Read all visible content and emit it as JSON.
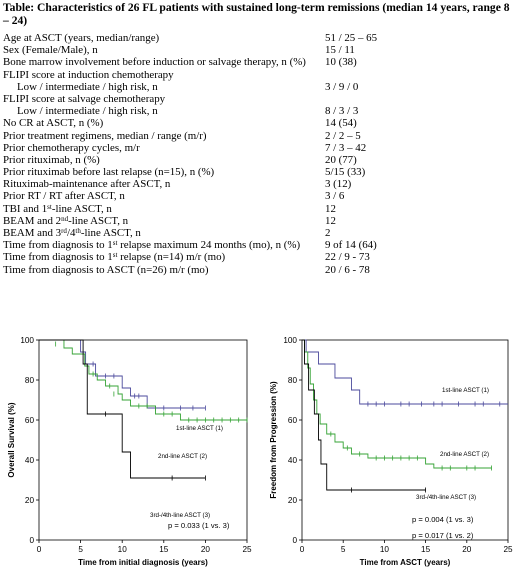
{
  "table": {
    "title": "Table:  Characteristics of 26 FL patients with sustained long-term remissions (median 14 years, range 8 – 24)",
    "rows": [
      {
        "label": "Age at ASCT (years, median/range)",
        "value": "51 / 25 – 65"
      },
      {
        "label": "Sex (Female/Male), n",
        "value": "15 / 11"
      },
      {
        "label": "Bone marrow involvement before induction or salvage therapy, n (%)",
        "value": "10 (38)"
      },
      {
        "label": "FLIPI score at induction chemotherapy",
        "value": ""
      },
      {
        "label": "Low / intermediate / high risk, n",
        "value": "3 / 9 / 0",
        "indent": true
      },
      {
        "label": "FLIPI score at salvage chemotherapy",
        "value": ""
      },
      {
        "label": "Low / intermediate / high risk, n",
        "value": "8 / 3 / 3",
        "indent": true
      },
      {
        "label": "No CR at ASCT, n (%)",
        "value": "14 (54)"
      },
      {
        "label": "Prior treatment regimens, median / range (m/r)",
        "value": "2 / 2 – 5"
      },
      {
        "label": "Prior chemotherapy cycles, m/r",
        "value": "7 / 3 – 42"
      },
      {
        "label": "Prior rituximab, n (%)",
        "value": "20 (77)"
      },
      {
        "label": "Prior rituximab before last relapse (n=15), n (%)",
        "value": "5/15 (33)"
      },
      {
        "label": "Rituximab-maintenance after ASCT, n",
        "value": "3 (12)"
      },
      {
        "label": "Prior RT / RT after ASCT, n",
        "value": "3 / 6"
      },
      {
        "label_parts": [
          "TBI and 1",
          "st",
          "-line ASCT, n"
        ],
        "value": "12"
      },
      {
        "label_parts": [
          "BEAM and 2",
          "nd",
          "-line ASCT, n"
        ],
        "value": "12"
      },
      {
        "label_parts": [
          "BEAM and 3",
          "rd",
          "/4",
          "th",
          "-line ASCT, n"
        ],
        "value": "2"
      },
      {
        "label_parts": [
          "Time from diagnosis to 1",
          "st",
          " relapse maximum 24 months (mo), n (%)"
        ],
        "value": "9 of 14 (64)"
      },
      {
        "label_parts": [
          "Time from diagnosis to 1",
          "st",
          " relapse (n=14) m/r (mo)"
        ],
        "value": "22 / 9 - 73"
      },
      {
        "label": "Time from diagnosis to ASCT (n=26) m/r (mo)",
        "value": "20 / 6 - 78"
      }
    ]
  },
  "chart_data": [
    {
      "type": "line",
      "xlabel": "Time from initial diagnosis (years)",
      "ylabel": "Overall Survival (%)",
      "xlim": [
        0,
        25
      ],
      "ylim": [
        0,
        100
      ],
      "x_ticks": [
        0,
        5,
        10,
        15,
        20,
        25
      ],
      "y_ticks": [
        0,
        20,
        40,
        60,
        80,
        100
      ],
      "annotations": [
        "p = 0.033 (1 vs. 3)"
      ],
      "series": [
        {
          "name": "1st-line ASCT (1)",
          "color": "#4b4a9c",
          "steps": [
            [
              0,
              100
            ],
            [
              5,
              94
            ],
            [
              5.6,
              88
            ],
            [
              6.8,
              82
            ],
            [
              10,
              76
            ],
            [
              11,
              72
            ],
            [
              13,
              66
            ],
            [
              20,
              66
            ]
          ],
          "censors": [
            [
              6.5,
              88
            ],
            [
              8,
              82
            ],
            [
              9,
              82
            ],
            [
              11.5,
              72
            ],
            [
              12,
              72
            ],
            [
              14,
              66
            ],
            [
              15,
              66
            ],
            [
              17,
              66
            ],
            [
              18.5,
              66
            ],
            [
              20,
              66
            ]
          ]
        },
        {
          "name": "2nd-line ASCT (2)",
          "color": "#35a335",
          "steps": [
            [
              0,
              100
            ],
            [
              3,
              96
            ],
            [
              4,
              93
            ],
            [
              5.5,
              87
            ],
            [
              6,
              83
            ],
            [
              7,
              80
            ],
            [
              8,
              77
            ],
            [
              9.5,
              73
            ],
            [
              10,
              70
            ],
            [
              11,
              67
            ],
            [
              14,
              63
            ],
            [
              17,
              60
            ],
            [
              25,
              60
            ]
          ],
          "censors": [
            [
              2,
              98
            ],
            [
              6.5,
              83
            ],
            [
              8.5,
              77
            ],
            [
              9,
              73
            ],
            [
              12,
              67
            ],
            [
              13,
              67
            ],
            [
              15,
              63
            ],
            [
              16,
              63
            ],
            [
              18,
              60
            ],
            [
              19,
              60
            ],
            [
              20,
              60
            ],
            [
              21,
              60
            ],
            [
              22,
              60
            ],
            [
              23,
              60
            ],
            [
              24,
              60
            ],
            [
              25,
              60
            ]
          ]
        },
        {
          "name": "3rd-/4th-line ASCT (3)",
          "color": "#000000",
          "steps": [
            [
              0,
              100
            ],
            [
              5.3,
              88
            ],
            [
              5.8,
              63
            ],
            [
              10,
              44
            ],
            [
              11,
              31
            ],
            [
              20,
              31
            ]
          ],
          "censors": [
            [
              8,
              63
            ],
            [
              16,
              31
            ],
            [
              20,
              31
            ]
          ]
        }
      ]
    },
    {
      "type": "line",
      "xlabel": "Time from ASCT (years)",
      "ylabel": "Freedom from Progression (%)",
      "xlim": [
        0,
        25
      ],
      "ylim": [
        0,
        100
      ],
      "x_ticks": [
        0,
        5,
        10,
        15,
        20,
        25
      ],
      "y_ticks": [
        0,
        20,
        40,
        60,
        80,
        100
      ],
      "annotations": [
        "p = 0.004 (1 vs. 3)",
        "p = 0.017 (1 vs. 2)"
      ],
      "series": [
        {
          "name": "1st-line ASCT (1)",
          "color": "#4b4a9c",
          "steps": [
            [
              0,
              100
            ],
            [
              0.5,
              94
            ],
            [
              2,
              88
            ],
            [
              4,
              81
            ],
            [
              6,
              75
            ],
            [
              7,
              68
            ],
            [
              25,
              68
            ]
          ],
          "censors": [
            [
              8,
              68
            ],
            [
              9,
              68
            ],
            [
              10,
              68
            ],
            [
              12,
              68
            ],
            [
              13,
              68
            ],
            [
              14.5,
              68
            ],
            [
              16,
              68
            ],
            [
              17,
              68
            ],
            [
              19,
              68
            ],
            [
              21,
              68
            ],
            [
              22,
              68
            ],
            [
              24,
              68
            ]
          ]
        },
        {
          "name": "2nd-line ASCT (2)",
          "color": "#35a335",
          "steps": [
            [
              0,
              100
            ],
            [
              0.3,
              94
            ],
            [
              0.7,
              86
            ],
            [
              1,
              78
            ],
            [
              1.4,
              70
            ],
            [
              1.8,
              63
            ],
            [
              2.2,
              58
            ],
            [
              3,
              53
            ],
            [
              4,
              49
            ],
            [
              5,
              46
            ],
            [
              6,
              43
            ],
            [
              8,
              41
            ],
            [
              15,
              38
            ],
            [
              16,
              36
            ],
            [
              23,
              36
            ]
          ],
          "censors": [
            [
              3.5,
              53
            ],
            [
              5.5,
              46
            ],
            [
              7,
              43
            ],
            [
              9,
              41
            ],
            [
              10,
              41
            ],
            [
              11,
              41
            ],
            [
              12,
              41
            ],
            [
              13,
              41
            ],
            [
              14,
              41
            ],
            [
              17,
              36
            ],
            [
              18,
              36
            ],
            [
              20,
              36
            ],
            [
              21,
              36
            ],
            [
              23,
              36
            ]
          ]
        },
        {
          "name": "3rd-/4th-line ASCT (3)",
          "color": "#000000",
          "steps": [
            [
              0,
              100
            ],
            [
              0.3,
              88
            ],
            [
              0.8,
              75
            ],
            [
              1.5,
              63
            ],
            [
              2,
              50
            ],
            [
              2.3,
              38
            ],
            [
              3,
              25
            ],
            [
              15,
              25
            ]
          ],
          "censors": [
            [
              6,
              25
            ],
            [
              15,
              25
            ]
          ]
        }
      ]
    }
  ]
}
